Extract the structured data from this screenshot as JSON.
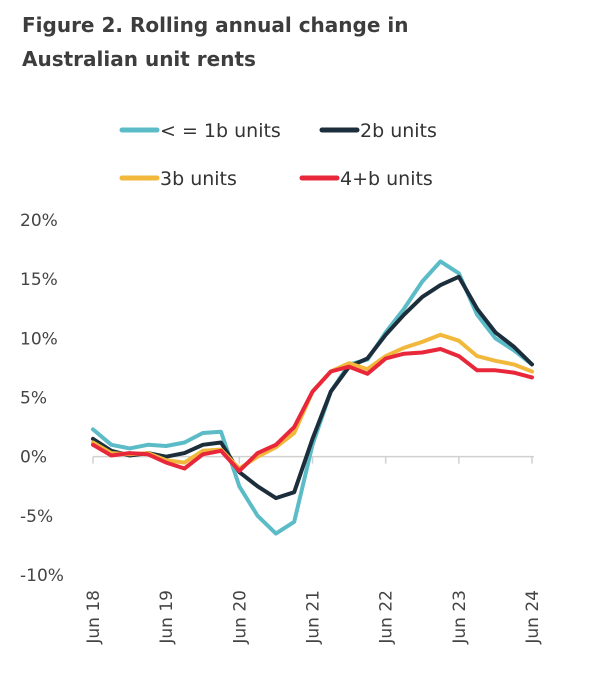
{
  "chart_data": {
    "type": "line",
    "title": "Figure 2. Rolling annual change in Australian unit rents",
    "xlabel": "",
    "ylabel": "",
    "ylim": [
      -10,
      20
    ],
    "yticks": [
      "20%",
      "15%",
      "10%",
      "5%",
      "0%",
      "-5%",
      "-10%"
    ],
    "ytick_values": [
      20,
      15,
      10,
      5,
      0,
      -5,
      -10
    ],
    "xtick_labels": [
      "Jun 18",
      "Jun 19",
      "Jun 20",
      "Jun 21",
      "Jun 22",
      "Jun 23",
      "Jun 24"
    ],
    "x": [
      "Jun 18",
      "Sep 18",
      "Dec 18",
      "Mar 19",
      "Jun 19",
      "Sep 19",
      "Dec 19",
      "Mar 20",
      "Jun 20",
      "Sep 20",
      "Dec 20",
      "Mar 21",
      "Jun 21",
      "Sep 21",
      "Dec 21",
      "Mar 22",
      "Jun 22",
      "Sep 22",
      "Dec 22",
      "Mar 23",
      "Jun 23",
      "Sep 23",
      "Dec 23",
      "Mar 24",
      "Jun 24"
    ],
    "legend_position": "top",
    "grid": false,
    "series": [
      {
        "name": "< = 1b units",
        "color": "#5bbcc8",
        "values": [
          2.3,
          1.0,
          0.7,
          1.0,
          0.9,
          1.2,
          2.0,
          2.1,
          -2.5,
          -5.0,
          -6.5,
          -5.5,
          1.0,
          5.5,
          7.8,
          8.2,
          10.5,
          12.5,
          14.8,
          16.5,
          15.5,
          12.0,
          10.0,
          9.0,
          7.8
        ]
      },
      {
        "name": "2b units",
        "color": "#1c2e3b",
        "values": [
          1.5,
          0.5,
          0.1,
          0.3,
          0.0,
          0.3,
          1.0,
          1.2,
          -1.3,
          -2.5,
          -3.5,
          -3.0,
          1.5,
          5.5,
          7.6,
          8.3,
          10.3,
          12.0,
          13.5,
          14.5,
          15.2,
          12.5,
          10.5,
          9.3,
          7.8
        ]
      },
      {
        "name": "3b units",
        "color": "#f2b83b",
        "values": [
          1.2,
          0.3,
          0.2,
          0.3,
          -0.3,
          -0.5,
          0.5,
          0.6,
          -1.0,
          0.0,
          0.8,
          2.0,
          5.5,
          7.2,
          7.9,
          7.4,
          8.5,
          9.2,
          9.7,
          10.3,
          9.8,
          8.5,
          8.1,
          7.8,
          7.2
        ]
      },
      {
        "name": "4+b units",
        "color": "#e8283a",
        "values": [
          1.0,
          0.1,
          0.3,
          0.2,
          -0.5,
          -1.0,
          0.2,
          0.5,
          -1.2,
          0.3,
          1.0,
          2.5,
          5.5,
          7.2,
          7.6,
          7.0,
          8.3,
          8.7,
          8.8,
          9.1,
          8.5,
          7.3,
          7.3,
          7.1,
          6.7
        ]
      }
    ]
  }
}
